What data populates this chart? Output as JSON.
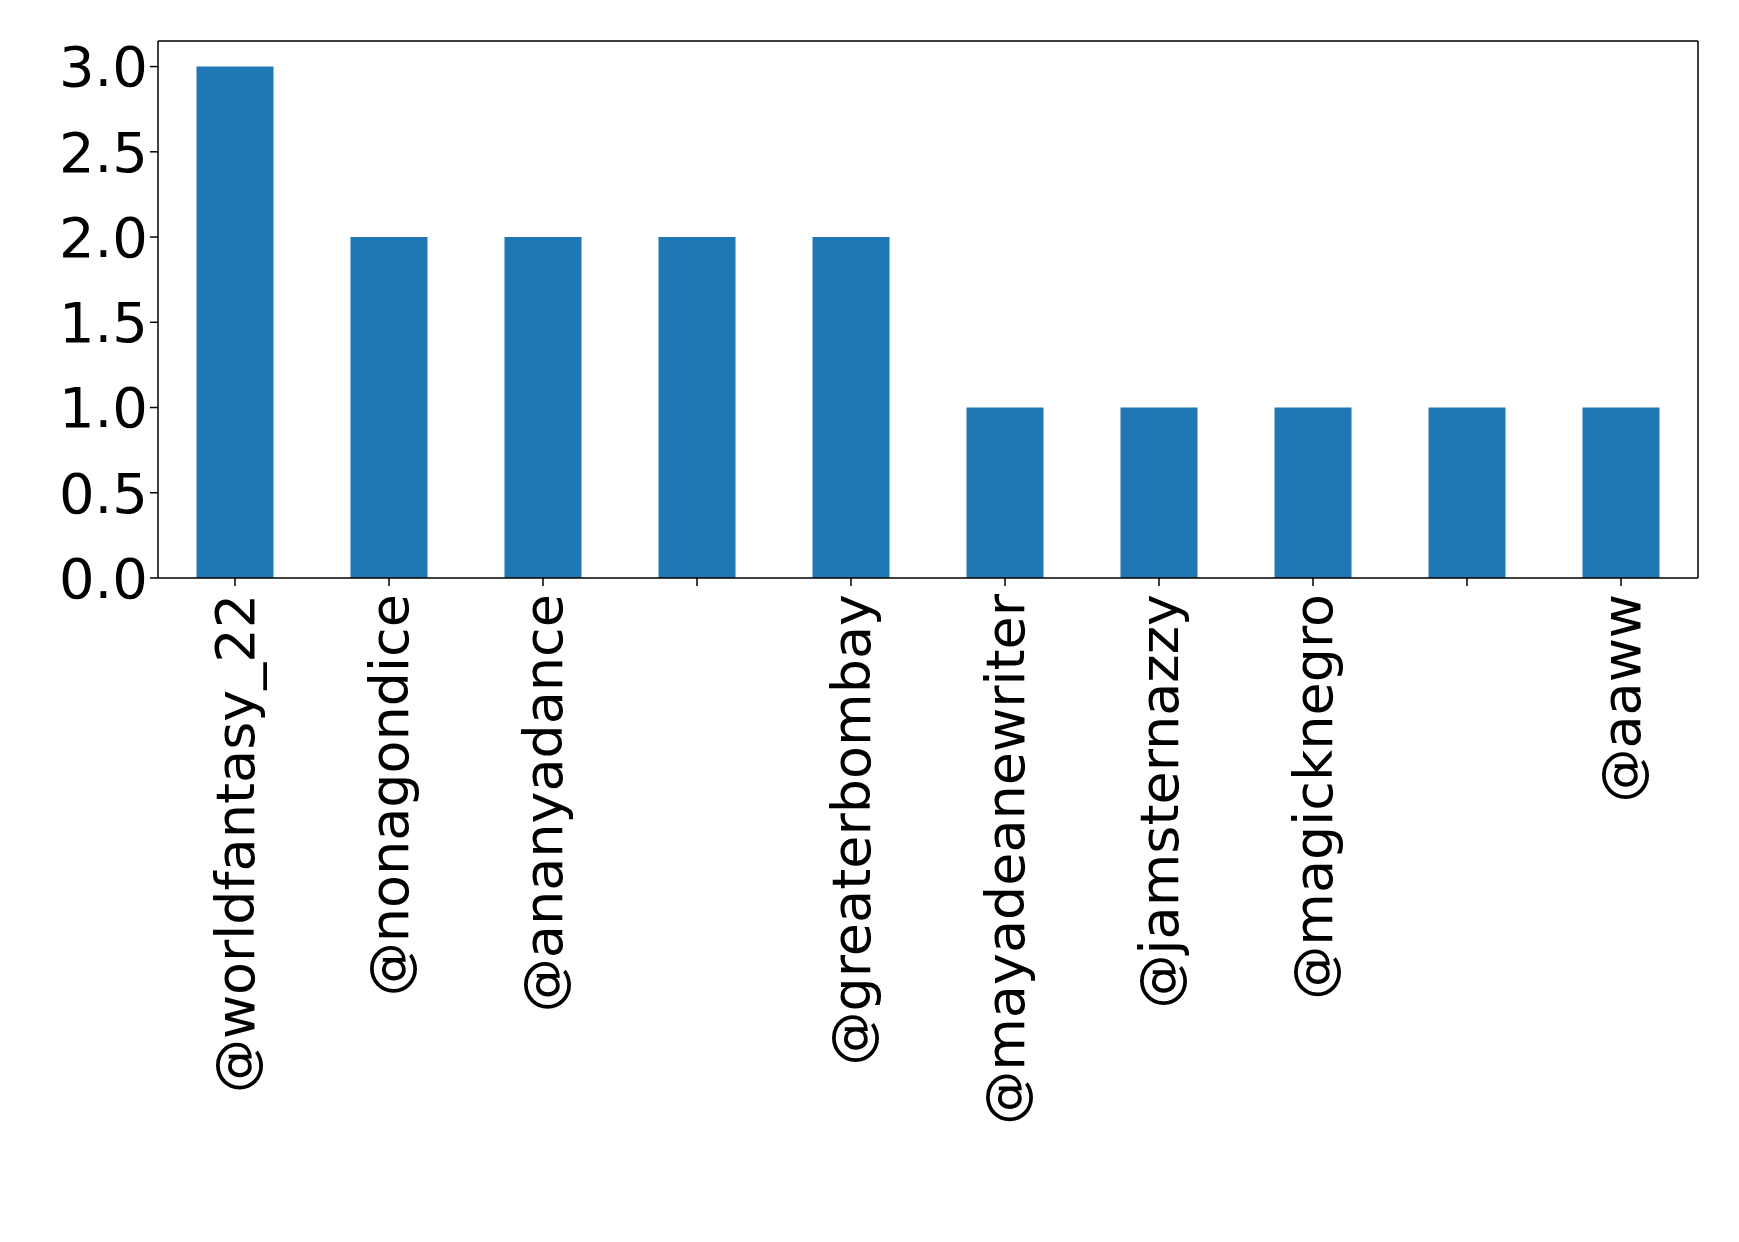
{
  "chart_data": {
    "type": "bar",
    "categories": [
      "@worldfantasy_22",
      "@nonagondice",
      "@ananyadance",
      null,
      "@greaterbombay",
      "@mayadeanewriter",
      "@jamsternazzy",
      "@magicknegro",
      null,
      "@aaww"
    ],
    "values": [
      3,
      2,
      2,
      2,
      2,
      1,
      1,
      1,
      1,
      1
    ],
    "color": "#1f77b4",
    "ylim": [
      0,
      3.15
    ],
    "yticks": [
      {
        "value": 0,
        "label": "0.0"
      },
      {
        "value": 0.5,
        "label": "0.5"
      },
      {
        "value": 1,
        "label": "1.0"
      },
      {
        "value": 1.5,
        "label": "1.5"
      },
      {
        "value": 2,
        "label": "2.0"
      },
      {
        "value": 2.5,
        "label": "2.5"
      },
      {
        "value": 3,
        "label": "3.0"
      }
    ],
    "grid": false
  }
}
